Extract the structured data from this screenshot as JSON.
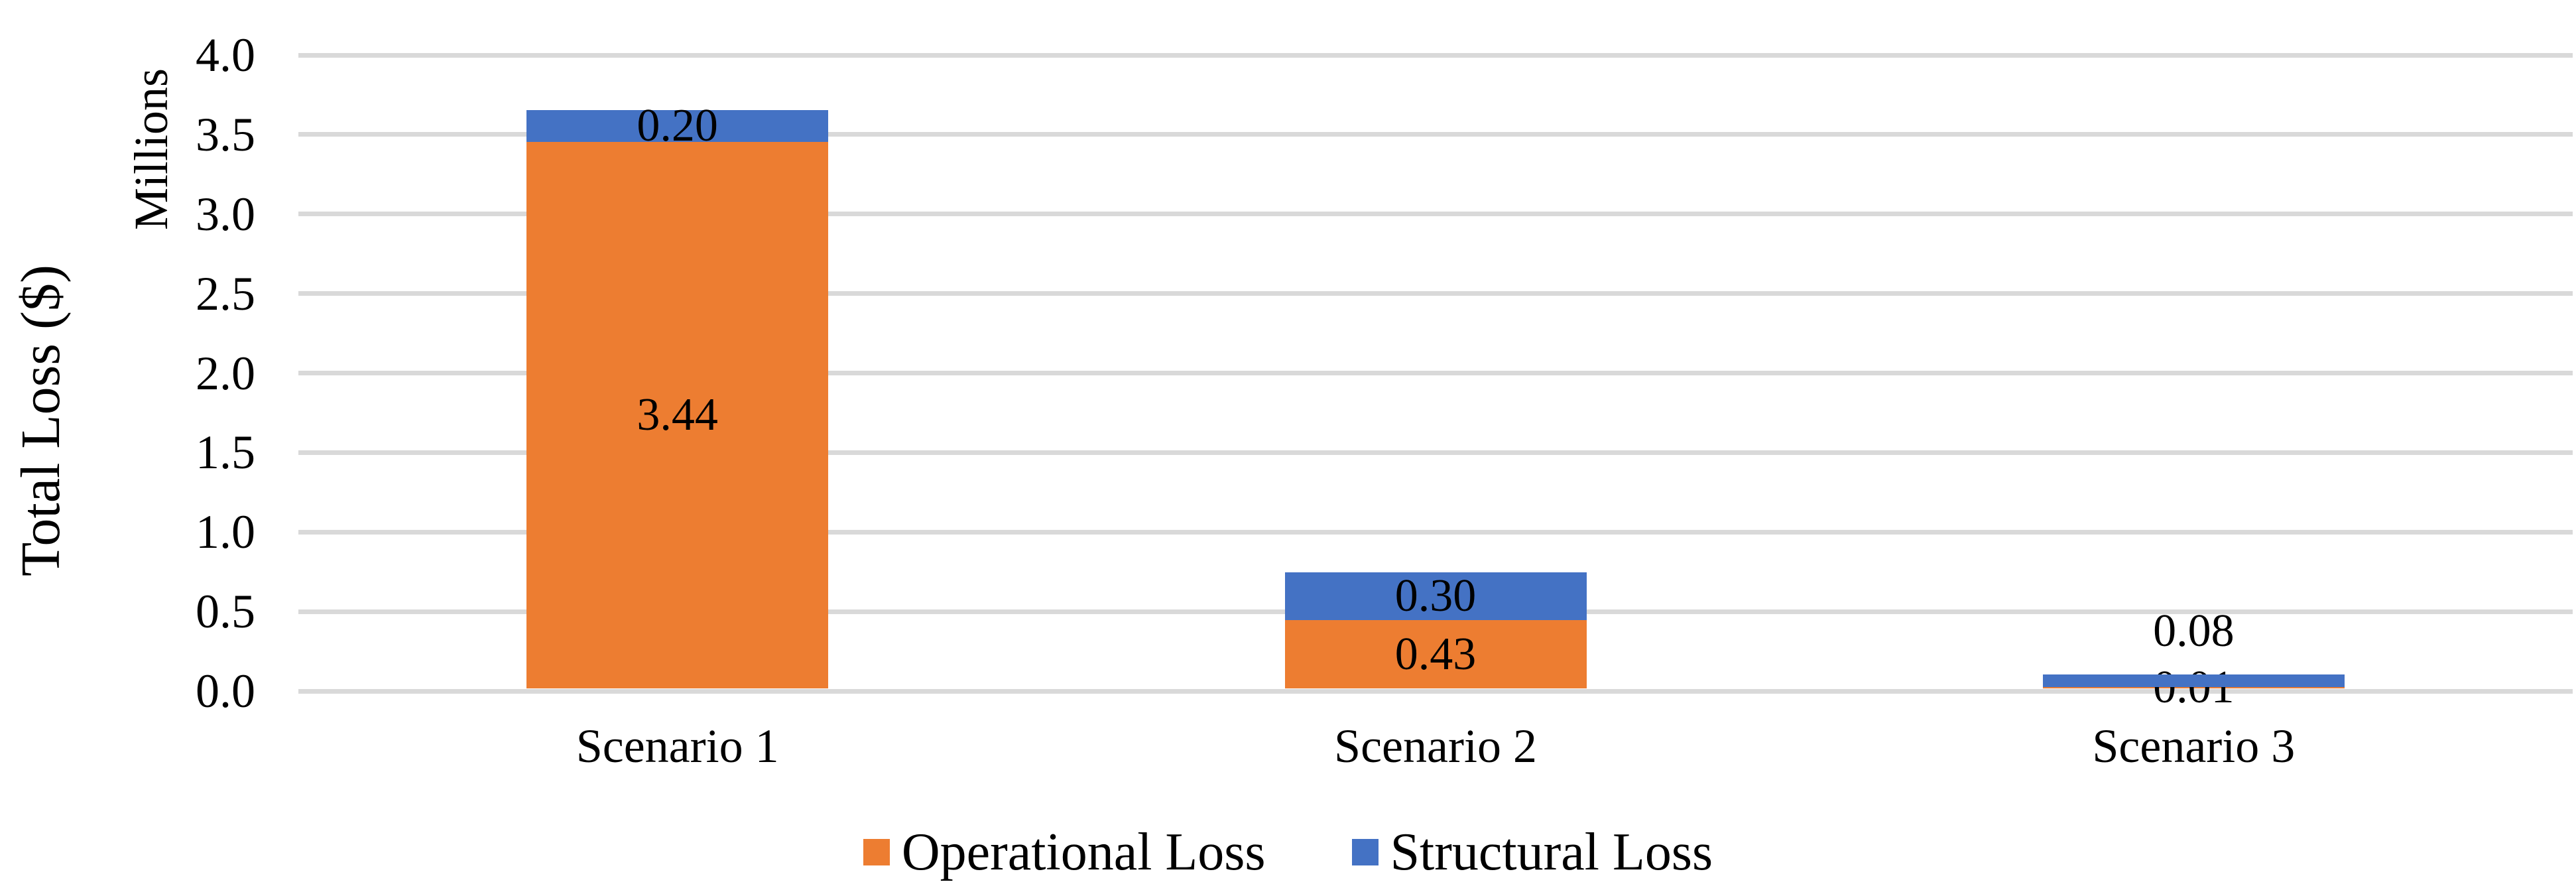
{
  "chart_data": {
    "type": "bar",
    "stacked": true,
    "title": "",
    "categories": [
      "Scenario 1",
      "Scenario 2",
      "Scenario 3"
    ],
    "series": [
      {
        "name": "Operational Loss",
        "color": "#ED7D31",
        "values": [
          3.44,
          0.43,
          0.01
        ],
        "labels": [
          "3.44",
          "0.43",
          "0.01"
        ]
      },
      {
        "name": "Structural Loss",
        "color": "#4472C4",
        "values": [
          0.2,
          0.3,
          0.08
        ],
        "labels": [
          "0.20",
          "0.30",
          "0.08"
        ]
      }
    ],
    "xlabel": "",
    "ylabel": "Total Loss ($)",
    "y_units_label": "Millions",
    "ylim": [
      0.0,
      4.0
    ],
    "ytick_step": 0.5,
    "yticks": [
      "0.0",
      "0.5",
      "1.0",
      "1.5",
      "2.0",
      "2.5",
      "3.0",
      "3.5",
      "4.0"
    ],
    "grid": true,
    "gridline_color": "#D9D9D9",
    "axis_line_color": "#D9D9D9",
    "text_color": "#000000",
    "background_color": "#FFFFFF",
    "legend_position": "bottom",
    "legend_entries": [
      "Operational Loss",
      "Structural Loss"
    ]
  }
}
